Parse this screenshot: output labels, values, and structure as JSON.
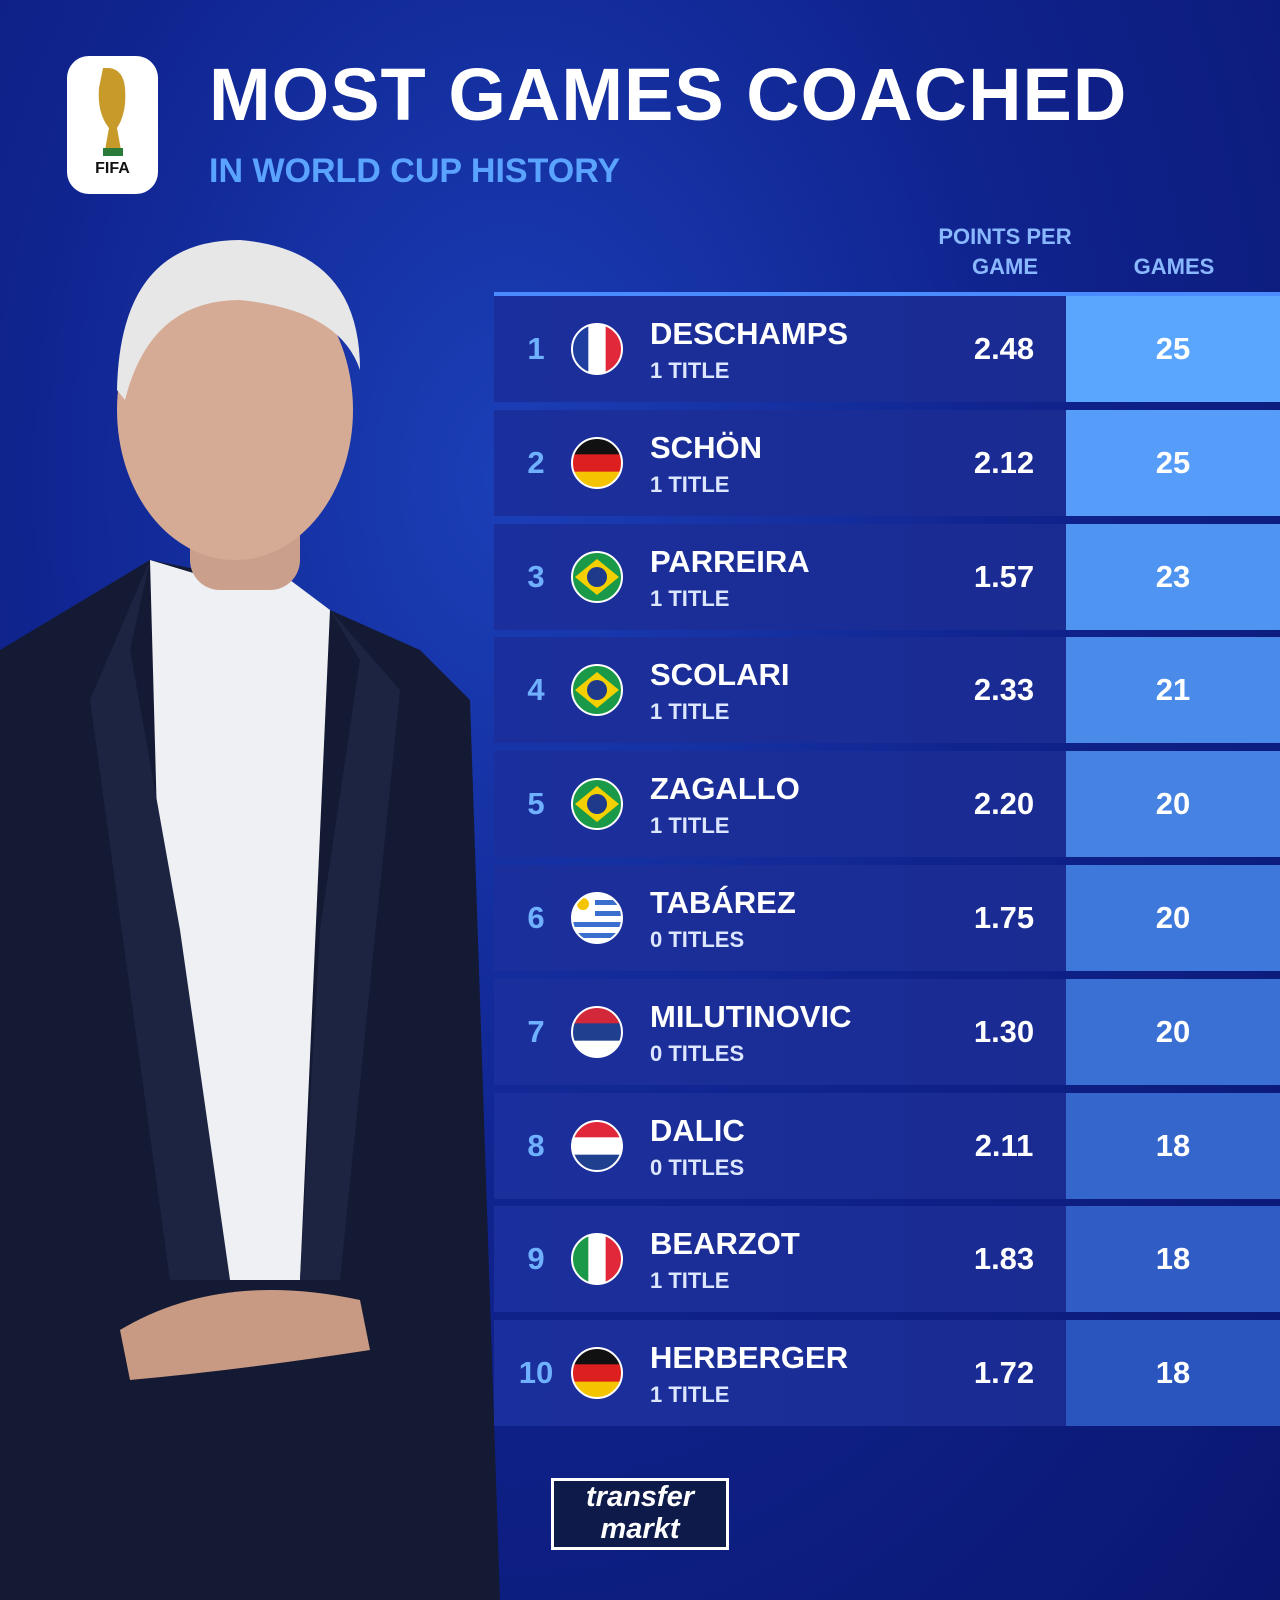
{
  "header": {
    "title": "MOST GAMES COACHED",
    "subtitle": "IN WORLD CUP HISTORY",
    "logo": "FIFA"
  },
  "table": {
    "columns": [
      "POINTS PER GAME",
      "GAMES"
    ],
    "rows": [
      [
        "1",
        "DESCHAMPS",
        "1 TITLE",
        "2.48",
        "25"
      ],
      [
        "2",
        "SCHÖN",
        "1 TITLE",
        "2.12",
        "25"
      ],
      [
        "3",
        "PARREIRA",
        "1 TITLE",
        "1.57",
        "23"
      ],
      [
        "4",
        "SCOLARI",
        "1 TITLE",
        "2.33",
        "21"
      ],
      [
        "5",
        "ZAGALLO",
        "1 TITLE",
        "2.20",
        "20"
      ],
      [
        "6",
        "TABÁREZ",
        "0 TITLES",
        "1.75",
        "20"
      ],
      [
        "7",
        "MILUTINOVIC",
        "0 TITLES",
        "1.30",
        "20"
      ],
      [
        "8",
        "DALIC",
        "0 TITLES",
        "2.11",
        "18"
      ],
      [
        "9",
        "BEARZOT",
        "1 TITLE",
        "1.83",
        "18"
      ],
      [
        "10",
        "HERBERGER",
        "1 TITLE",
        "1.72",
        "18"
      ]
    ]
  },
  "footer": {
    "brand": [
      "transfer",
      "markt"
    ]
  }
}
